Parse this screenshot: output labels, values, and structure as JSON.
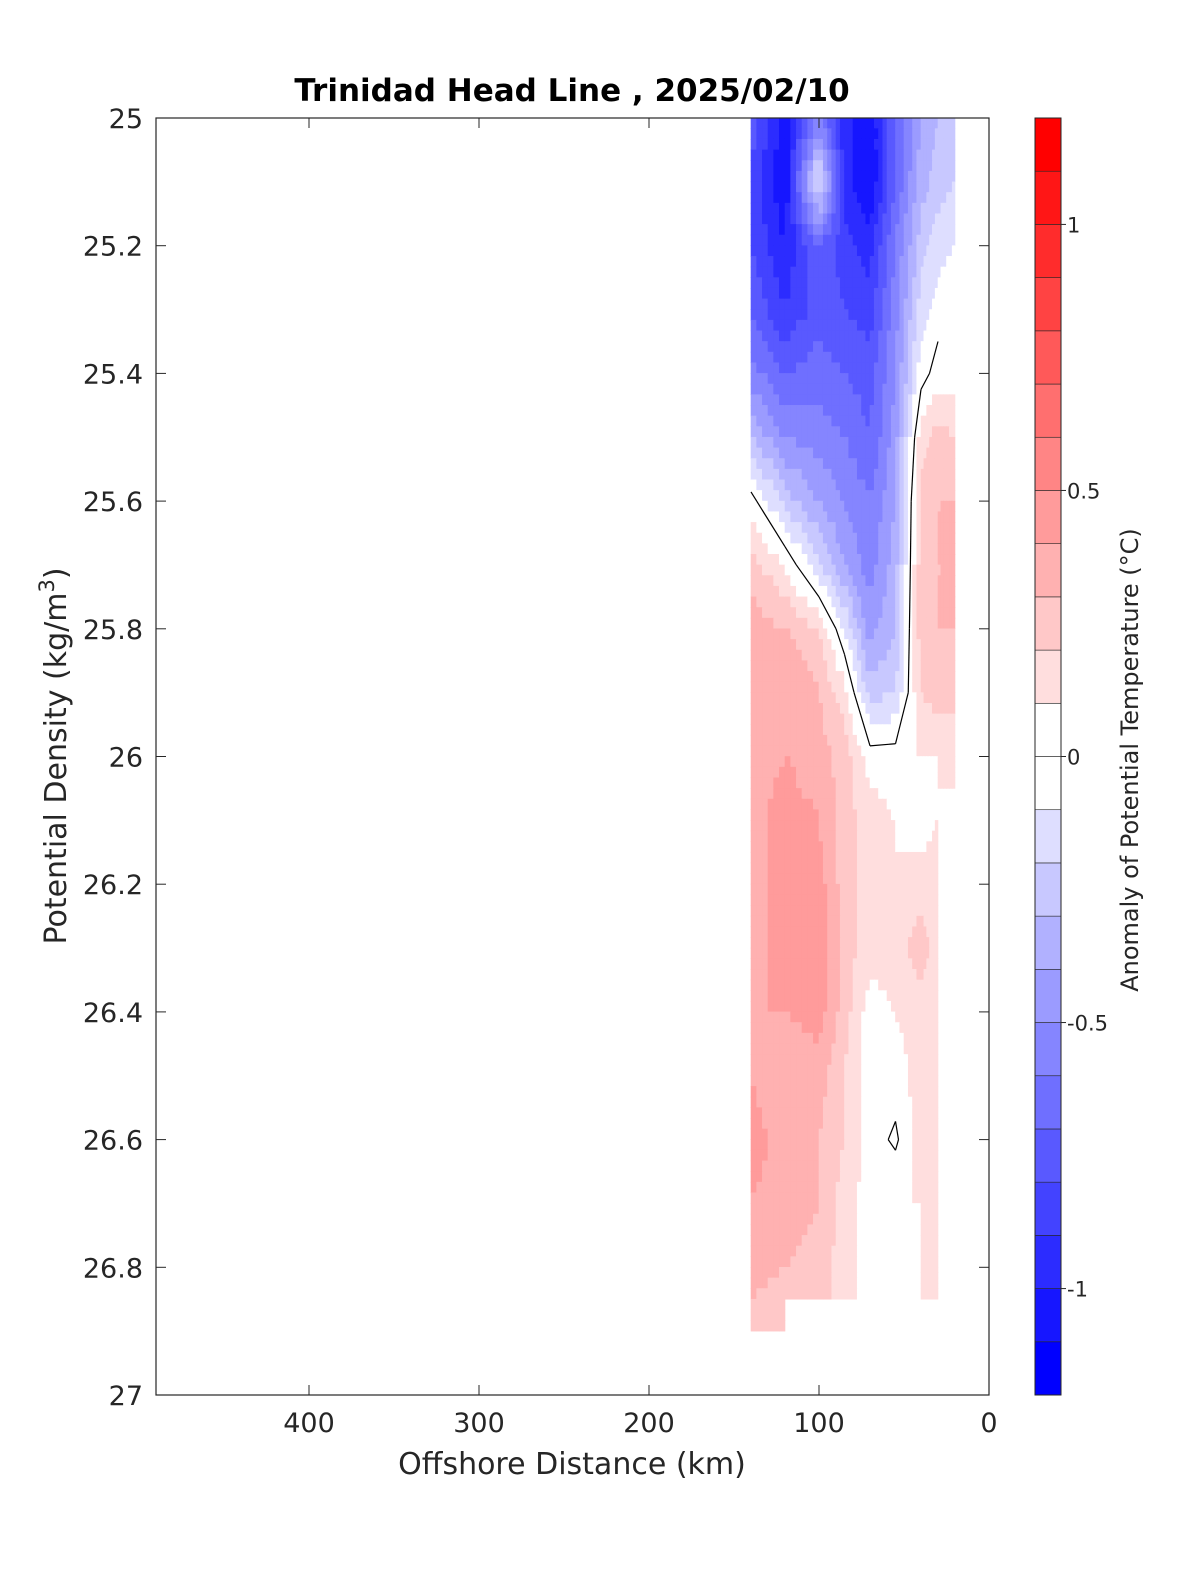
{
  "chart_data": {
    "type": "heatmap",
    "subtype": "filled-contour section",
    "title": "Trinidad Head Line , 2025/02/10",
    "xlabel": "Offshore Distance (km)",
    "ylabel_main": "Potential Density (kg/m",
    "ylabel_sup": "3",
    "ylabel_end": ")",
    "colorbar_label": "Anomaly of Potential Temperature (°C)",
    "xlim": [
      490,
      0
    ],
    "x_reversed": true,
    "ylim": [
      25,
      27
    ],
    "y_reversed": true,
    "x_ticks": [
      "400",
      "300",
      "200",
      "100",
      "0"
    ],
    "x_tick_values": [
      400,
      300,
      200,
      100,
      0
    ],
    "y_ticks": [
      "25",
      "25.2",
      "25.4",
      "25.6",
      "25.8",
      "26",
      "26.2",
      "26.4",
      "26.6",
      "26.8",
      "27"
    ],
    "y_tick_values": [
      25,
      25.2,
      25.4,
      25.6,
      25.8,
      26,
      26.2,
      26.4,
      26.6,
      26.8,
      27
    ],
    "colorbar_ticks": [
      "1",
      "0.5",
      "0",
      "-0.5",
      "-1"
    ],
    "colorbar_tick_values": [
      1,
      0.5,
      0,
      -0.5,
      -1
    ],
    "colorbar_range": [
      -1.2,
      1.2
    ],
    "colorbar_step": 0.1,
    "colormap": {
      "negative": "#0000ff",
      "zero": "#ffffff",
      "positive": "#ff0000"
    },
    "grid": false,
    "contour_lines": [
      0
    ],
    "stations_x": [
      140,
      120,
      100,
      85,
      70,
      55,
      40,
      30,
      20
    ],
    "sigma_levels": [
      25,
      25.1,
      25.2,
      25.3,
      25.4,
      25.5,
      25.6,
      25.7,
      25.8,
      25.9,
      26,
      26.1,
      26.2,
      26.3,
      26.4,
      26.5,
      26.6,
      26.7,
      26.8,
      26.9
    ],
    "anomaly_grid": [
      [
        -0.75,
        -1.05,
        -0.6,
        -0.95,
        -1.1,
        -0.7,
        -0.4,
        -0.3,
        -0.25
      ],
      [
        -0.8,
        -1.1,
        -0.1,
        -0.95,
        -1.1,
        -0.7,
        -0.35,
        -0.25,
        -0.2
      ],
      [
        -0.8,
        -1.0,
        -0.7,
        -0.85,
        -0.95,
        -0.6,
        -0.25,
        -0.15,
        -0.1
      ],
      [
        -0.7,
        -0.9,
        -0.75,
        -0.8,
        -0.85,
        -0.55,
        -0.15,
        -0.05,
        0.0
      ],
      [
        -0.55,
        -0.7,
        -0.65,
        -0.7,
        -0.75,
        -0.5,
        -0.05,
        0.05,
        0.05
      ],
      [
        -0.3,
        -0.5,
        -0.55,
        -0.6,
        -0.7,
        -0.45,
        0.15,
        0.25,
        0.2
      ],
      [
        0.05,
        -0.25,
        -0.4,
        -0.5,
        -0.6,
        -0.4,
        0.25,
        0.3,
        0.3
      ],
      [
        0.25,
        0.1,
        -0.2,
        -0.4,
        -0.55,
        -0.35,
        0.25,
        0.3,
        0.3
      ],
      [
        0.35,
        0.3,
        0.2,
        -0.1,
        -0.45,
        -0.3,
        0.25,
        0.3,
        0.3
      ],
      [
        0.35,
        0.4,
        0.3,
        0.15,
        -0.25,
        -0.2,
        0.2,
        0.25,
        0.25
      ],
      [
        0.35,
        0.4,
        0.35,
        0.25,
        0.05,
        0.05,
        0.1,
        0.1,
        0.1
      ],
      [
        0.35,
        0.45,
        0.4,
        0.25,
        0.15,
        0.1,
        0.05,
        0.1,
        null
      ],
      [
        0.35,
        0.45,
        0.45,
        0.25,
        0.15,
        0.1,
        0.15,
        0.15,
        null
      ],
      [
        0.35,
        0.45,
        0.48,
        0.25,
        0.15,
        0.15,
        0.25,
        0.15,
        null
      ],
      [
        0.4,
        0.4,
        0.45,
        0.25,
        0.05,
        0.1,
        0.15,
        0.1,
        null
      ],
      [
        0.4,
        0.3,
        0.35,
        0.2,
        0.05,
        0.05,
        0.15,
        0.15,
        null
      ],
      [
        0.45,
        0.35,
        0.3,
        0.2,
        0.05,
        -0.02,
        0.15,
        0.15,
        null
      ],
      [
        0.4,
        0.35,
        0.3,
        0.15,
        0.05,
        0.1,
        0.1,
        0.1,
        null
      ],
      [
        0.35,
        0.3,
        0.25,
        0.15,
        0.05,
        0.05,
        0.1,
        0.1,
        null
      ],
      [
        0.25,
        0.2,
        null,
        null,
        null,
        null,
        null,
        null,
        null
      ]
    ]
  }
}
